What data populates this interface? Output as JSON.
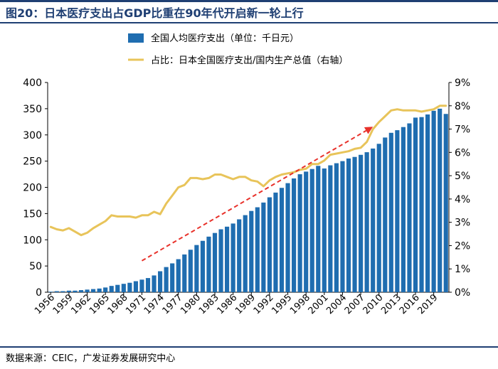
{
  "header": {
    "title": "图20：日本医疗支出占GDP比重在90年代开启新一轮上行"
  },
  "footer": {
    "source": "数据来源：CEIC，广发证券发展研究中心"
  },
  "chart_data": {
    "type": "bar",
    "years": [
      1956,
      1957,
      1958,
      1959,
      1960,
      1961,
      1962,
      1963,
      1964,
      1965,
      1966,
      1967,
      1968,
      1969,
      1970,
      1971,
      1972,
      1973,
      1974,
      1975,
      1976,
      1977,
      1978,
      1979,
      1980,
      1981,
      1982,
      1983,
      1984,
      1985,
      1986,
      1987,
      1988,
      1989,
      1990,
      1991,
      1992,
      1993,
      1994,
      1995,
      1996,
      1997,
      1998,
      1999,
      2000,
      2001,
      2002,
      2003,
      2004,
      2005,
      2006,
      2007,
      2008,
      2009,
      2010,
      2011,
      2012,
      2013,
      2014,
      2015,
      2016,
      2017,
      2018,
      2019,
      2020,
      2021
    ],
    "x_tick_labels": [
      "1956",
      "1959",
      "1962",
      "1965",
      "1968",
      "1971",
      "1974",
      "1977",
      "1980",
      "1983",
      "1986",
      "1989",
      "1992",
      "1995",
      "1998",
      "2001",
      "2004",
      "2007",
      "2010",
      "2013",
      "2016",
      "2019"
    ],
    "series": [
      {
        "name": "全国人均医疗支出（单位：千日元）",
        "type": "bar",
        "axis": "left",
        "color": "#1f6db0",
        "values": [
          1,
          2,
          2,
          3,
          3,
          4,
          5,
          6,
          7,
          9,
          12,
          14,
          16,
          18,
          21,
          24,
          27,
          32,
          40,
          48,
          55,
          63,
          72,
          81,
          90,
          98,
          106,
          113,
          120,
          125,
          131,
          139,
          147,
          155,
          162,
          171,
          181,
          190,
          199,
          208,
          217,
          225,
          230,
          235,
          241,
          236,
          242,
          246,
          250,
          255,
          258,
          262,
          267,
          274,
          283,
          295,
          304,
          309,
          315,
          322,
          333,
          334,
          339,
          346,
          350,
          340
        ]
      },
      {
        "name": "占比：日本全国医疗支出/国内生产总值（右轴）",
        "type": "line",
        "axis": "right",
        "color": "#e8c45a",
        "values": [
          2.8,
          2.7,
          2.65,
          2.75,
          2.6,
          2.45,
          2.55,
          2.75,
          2.9,
          3.05,
          3.3,
          3.25,
          3.25,
          3.25,
          3.2,
          3.3,
          3.3,
          3.45,
          3.35,
          3.8,
          4.15,
          4.5,
          4.6,
          4.9,
          4.9,
          4.85,
          4.9,
          5.05,
          5.05,
          4.95,
          4.85,
          4.95,
          4.95,
          4.8,
          4.75,
          4.55,
          4.8,
          4.95,
          5.05,
          5.1,
          5.15,
          5.25,
          5.3,
          5.5,
          5.5,
          5.65,
          5.9,
          5.95,
          6.0,
          6.05,
          6.15,
          6.2,
          6.45,
          7.0,
          7.3,
          7.55,
          7.8,
          7.85,
          7.8,
          7.8,
          7.8,
          7.75,
          7.8,
          7.85,
          8.0,
          8.0
        ]
      }
    ],
    "yaxis_left": {
      "ticks": [
        "0",
        "50",
        "100",
        "150",
        "200",
        "250",
        "300",
        "350",
        "400"
      ],
      "ylim": [
        0,
        400
      ]
    },
    "yaxis_right": {
      "ticks": [
        "0%",
        "1%",
        "2%",
        "3%",
        "4%",
        "5%",
        "6%",
        "7%",
        "8%",
        "9%"
      ],
      "ylim": [
        0,
        9
      ]
    },
    "annotation": {
      "type": "dashed-arrow",
      "color": "#e8322b",
      "from": {
        "year": 1971,
        "value": 1.35
      },
      "to": {
        "year": 2009,
        "value": 7.1
      }
    },
    "legend_position": "top",
    "grid": false
  }
}
